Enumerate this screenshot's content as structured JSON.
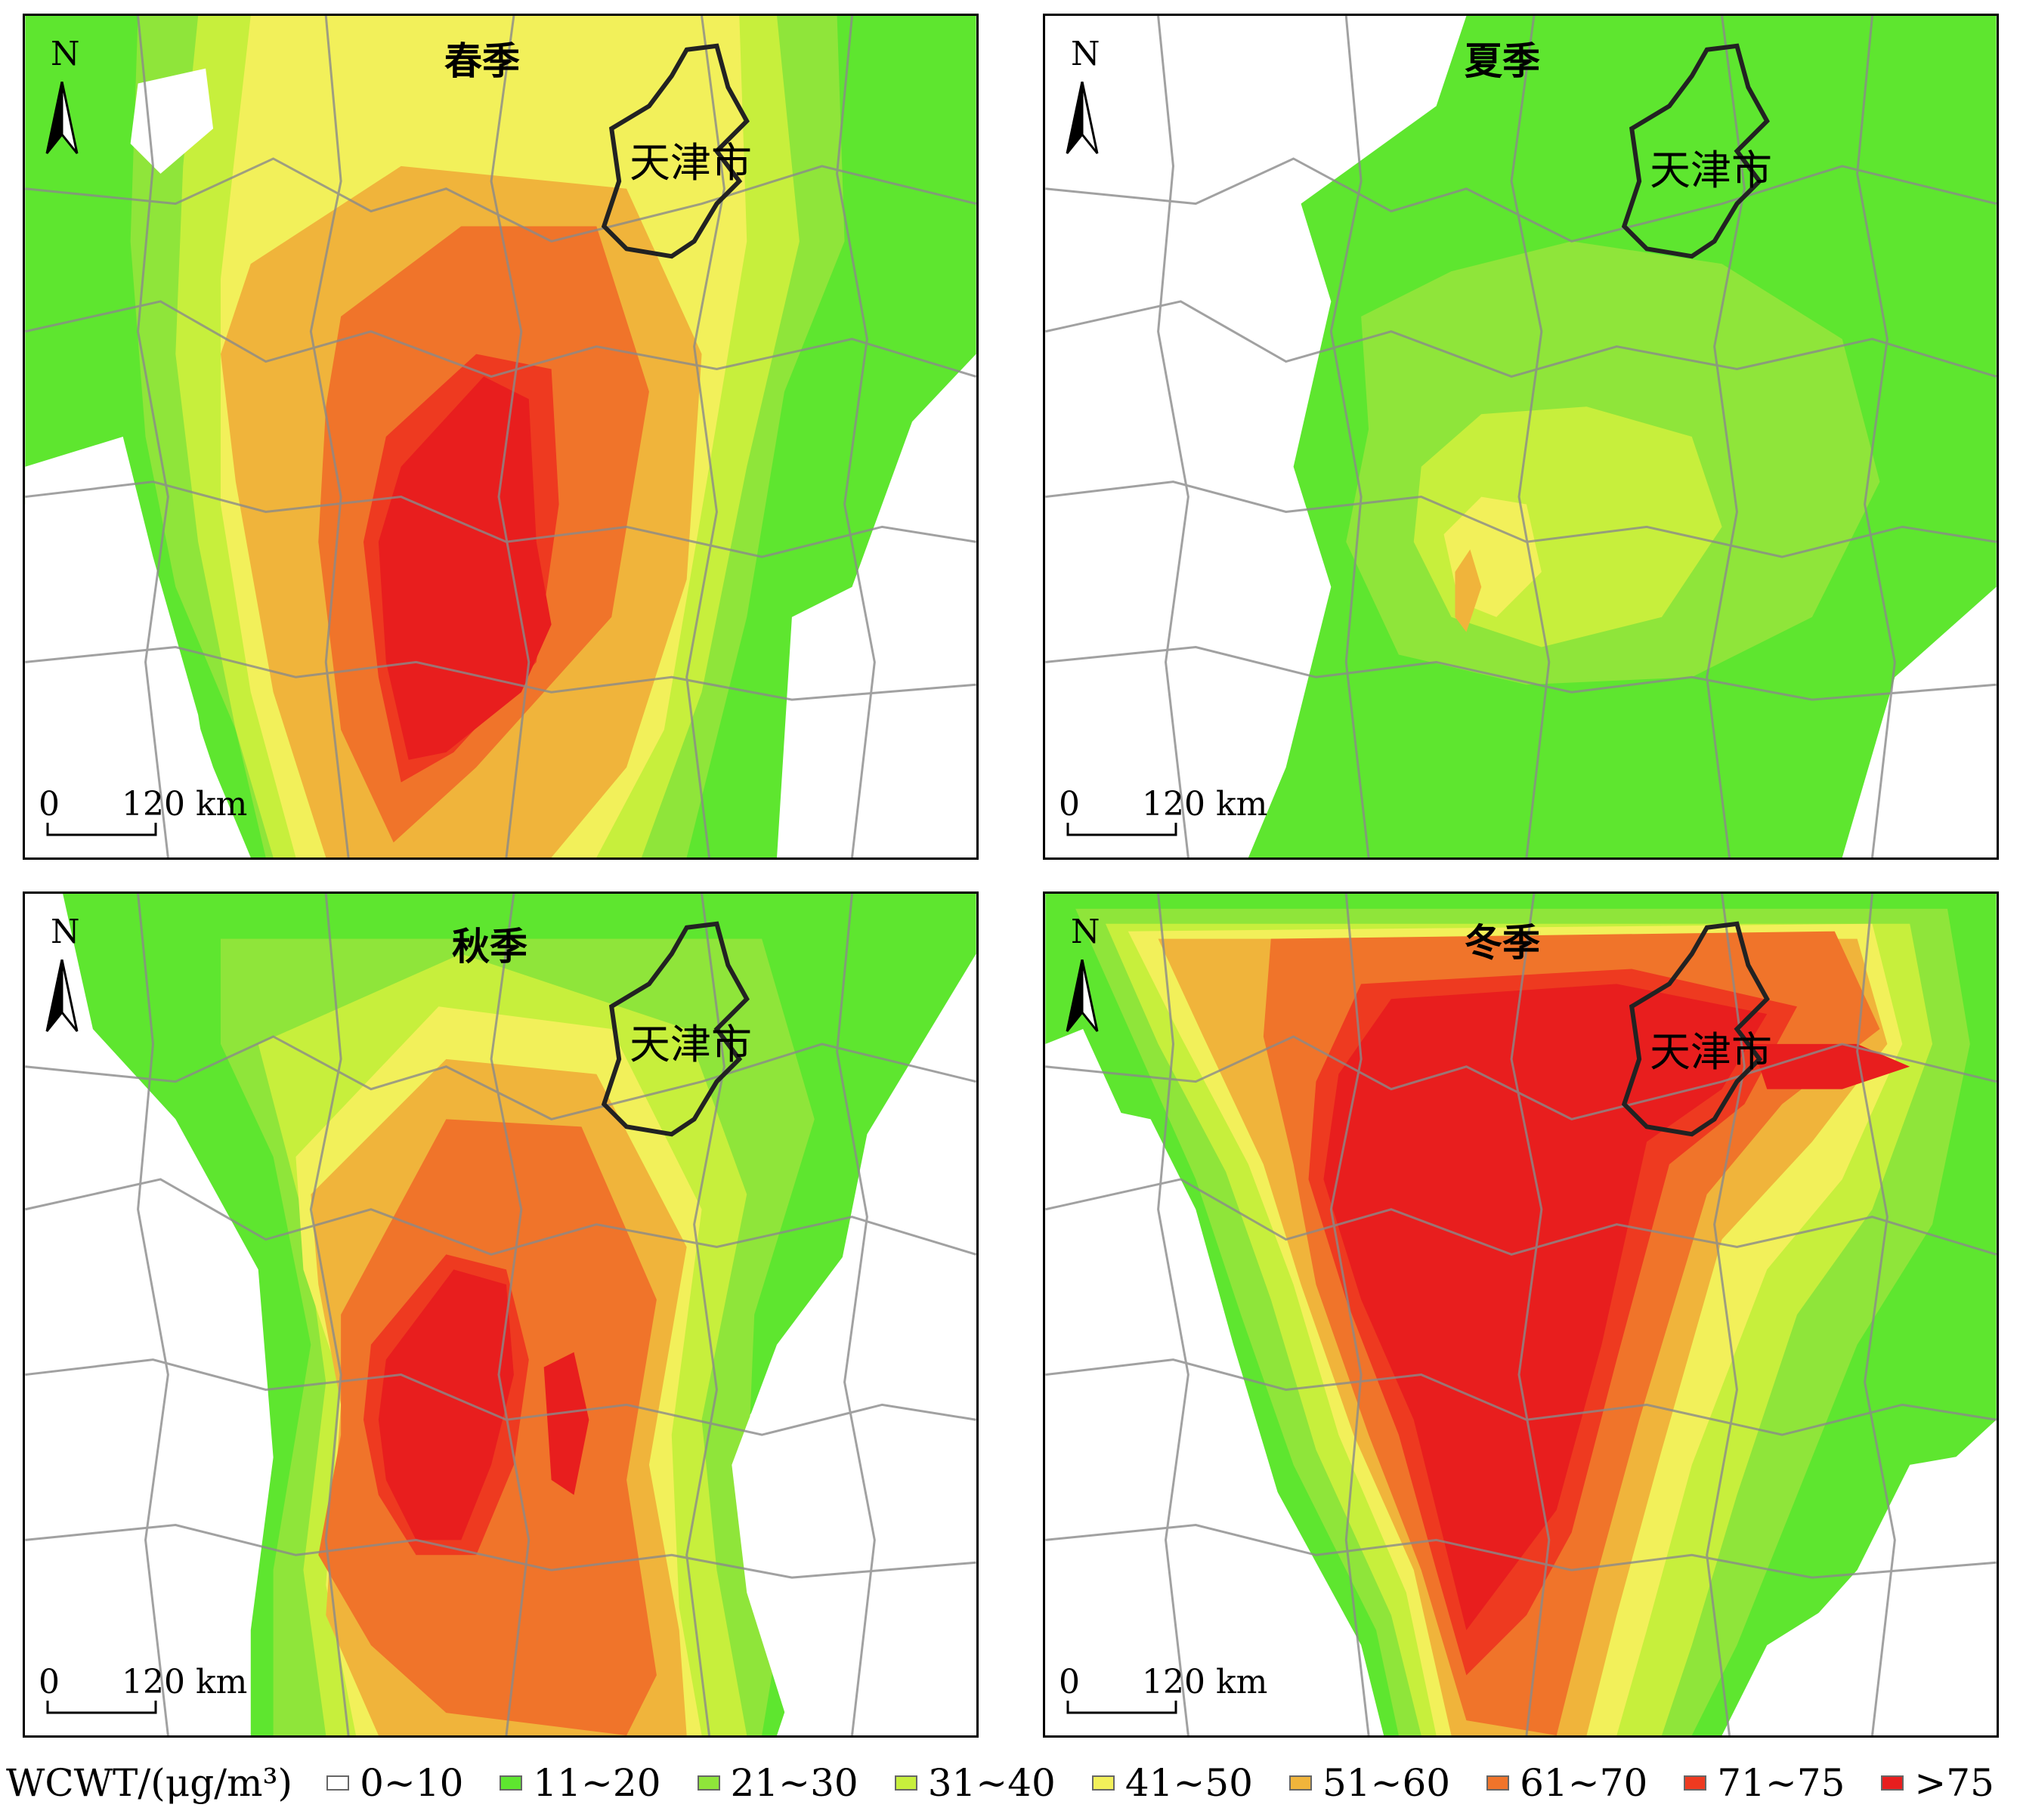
{
  "panels": [
    {
      "season": "春季",
      "city_label": "天津市"
    },
    {
      "season": "夏季",
      "city_label": "天津市"
    },
    {
      "season": "秋季",
      "city_label": "天津市"
    },
    {
      "season": "冬季",
      "city_label": "天津市"
    }
  ],
  "north_label": "N",
  "scale": {
    "zero": "0",
    "distance": "120 km"
  },
  "legend": {
    "title": "WCWT/(μg/m³)",
    "items": [
      {
        "label": "0~10",
        "color": "#ffffff"
      },
      {
        "label": "11~20",
        "color": "#5ee62f"
      },
      {
        "label": "21~30",
        "color": "#8fe53a"
      },
      {
        "label": "31~40",
        "color": "#c7ef3c"
      },
      {
        "label": "41~50",
        "color": "#f2f05a"
      },
      {
        "label": "51~60",
        "color": "#f0b43b"
      },
      {
        "label": "61~70",
        "color": "#f0742a"
      },
      {
        "label": "71~75",
        "color": "#ee3a20"
      },
      {
        "label": ">75",
        "color": "#e81e1e"
      }
    ]
  },
  "colors": {
    "c1": "#5ee62f",
    "c2": "#8fe53a",
    "c3": "#c7ef3c",
    "c4": "#f2f05a",
    "c5": "#f0b43b",
    "c6": "#f0742a",
    "c7": "#ee3a20",
    "c8": "#e81e1e",
    "boundary": "#8a8a8a",
    "tianjin": "#222222"
  }
}
